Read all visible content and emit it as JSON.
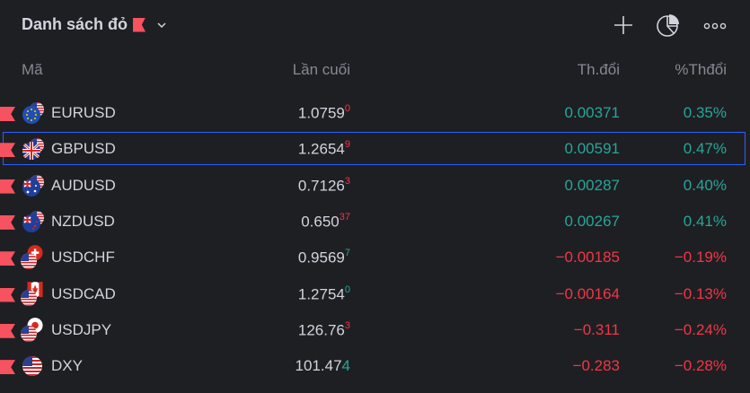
{
  "header": {
    "title": "Danh sách đỏ",
    "flag_color": "#f7525f",
    "add_icon": "plus-icon",
    "chart_icon": "pie-chart-icon",
    "more_icon": "more-horizontal-icon"
  },
  "columns": {
    "symbol": "Mã",
    "last": "Lần cuối",
    "change": "Th.đổi",
    "change_pct": "%Thđổi"
  },
  "colors": {
    "positive": "#26a69a",
    "negative": "#f23645",
    "selection": "#2962ff",
    "background": "#1e1f23"
  },
  "rows": [
    {
      "symbol": "EURUSD",
      "last_main": "1.0759",
      "last_sub": "0",
      "sub_dir": "neg",
      "change": "0.00371",
      "change_pct": "0.35%",
      "dir": "pos",
      "icon": "eur-usd-flag-icon"
    },
    {
      "symbol": "GBPUSD",
      "last_main": "1.2654",
      "last_sub": "9",
      "sub_dir": "neg",
      "change": "0.00591",
      "change_pct": "0.47%",
      "dir": "pos",
      "icon": "gbp-usd-flag-icon",
      "selected": true
    },
    {
      "symbol": "AUDUSD",
      "last_main": "0.7126",
      "last_sub": "3",
      "sub_dir": "neg",
      "change": "0.00287",
      "change_pct": "0.40%",
      "dir": "pos",
      "icon": "aud-usd-flag-icon"
    },
    {
      "symbol": "NZDUSD",
      "last_main": "0.650",
      "last_sub": "37",
      "sub_dir": "neg",
      "change": "0.00267",
      "change_pct": "0.41%",
      "dir": "pos",
      "icon": "nzd-usd-flag-icon"
    },
    {
      "symbol": "USDCHF",
      "last_main": "0.9569",
      "last_sub": "7",
      "sub_dir": "pos",
      "change": "−0.00185",
      "change_pct": "−0.19%",
      "dir": "neg",
      "icon": "usd-chf-flag-icon"
    },
    {
      "symbol": "USDCAD",
      "last_main": "1.2754",
      "last_sub": "0",
      "sub_dir": "pos",
      "change": "−0.00164",
      "change_pct": "−0.13%",
      "dir": "neg",
      "icon": "usd-cad-flag-icon"
    },
    {
      "symbol": "USDJPY",
      "last_main": "126.76",
      "last_sub": "3",
      "sub_dir": "neg",
      "change": "−0.311",
      "change_pct": "−0.24%",
      "dir": "neg",
      "icon": "usd-jpy-flag-icon"
    },
    {
      "symbol": "DXY",
      "last_main": "101.47",
      "last_sub": "4",
      "sub_dir": "pos_big",
      "change": "−0.283",
      "change_pct": "−0.28%",
      "dir": "neg",
      "icon": "usd-flag-icon"
    }
  ]
}
